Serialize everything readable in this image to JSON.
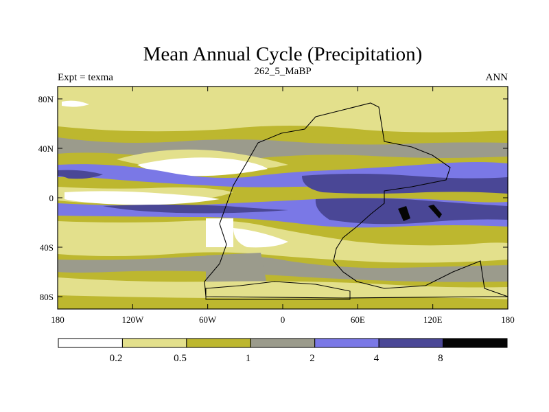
{
  "chart_data": {
    "type": "heatmap",
    "title": "Mean Annual Cycle (Precipitation)",
    "left_label": "Expt = texma",
    "center_label": "262_5_MaBP",
    "right_label": "ANN",
    "x_ticks": [
      "180",
      "120W",
      "60W",
      "0",
      "60E",
      "120E",
      "180"
    ],
    "x_tick_values": [
      -180,
      -120,
      -60,
      0,
      60,
      120,
      180
    ],
    "y_ticks": [
      "80N",
      "40N",
      "0",
      "40S",
      "80S"
    ],
    "y_tick_values": [
      80,
      40,
      0,
      -40,
      -80
    ],
    "xlim": [
      -180,
      180
    ],
    "ylim": [
      -90,
      90
    ],
    "contour_levels": [
      "0.2",
      "0.5",
      "1",
      "2",
      "4",
      "8"
    ],
    "level_values": [
      0.2,
      0.5,
      1,
      2,
      4,
      8
    ],
    "colorbar_colors": [
      "#ffffff",
      "#e3e08c",
      "#bdb72f",
      "#9b9b8c",
      "#7a78e6",
      "#4a4796",
      "#050505"
    ],
    "land_outline_color": "#000000",
    "background_fill": "#bdb72f"
  }
}
